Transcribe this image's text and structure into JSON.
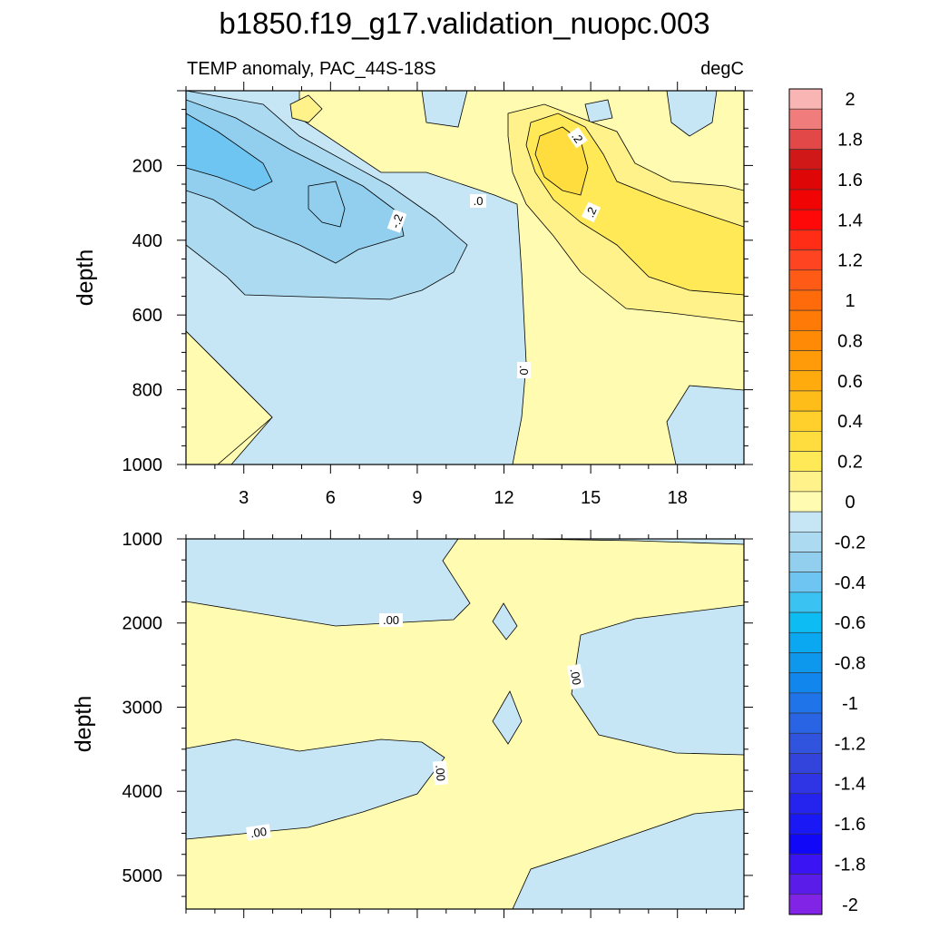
{
  "figure": {
    "title": "b1850.f19_g17.validation_nuopc.003",
    "subtitle_left": "TEMP anomaly, PAC_44S-18S",
    "subtitle_right": "degC"
  },
  "chart_data": [
    {
      "type": "contour",
      "panel": "upper",
      "ylabel": "depth",
      "xlabel": "",
      "x_range": [
        1,
        20.3
      ],
      "y_range": [
        0,
        1000
      ],
      "y_reversed": true,
      "x_ticks": [
        "3",
        "6",
        "9",
        "12",
        "15",
        "18"
      ],
      "y_ticks": [
        "200",
        "400",
        "600",
        "800",
        "1000"
      ],
      "contour_labels": [
        {
          "text": "-.2",
          "x": 8.8,
          "y": 365
        },
        {
          "text": ".0",
          "x": 11.5,
          "y": 300
        },
        {
          "text": ".2",
          "x": 14.8,
          "y": 120
        },
        {
          "text": ".2",
          "x": 15.3,
          "y": 330
        },
        {
          "text": ".0",
          "x": 12.1,
          "y": 730
        }
      ],
      "regions": [
        {
          "level": "0 to 0.1",
          "description": "warm anomaly east of x≈12 from surface to 1000 m"
        },
        {
          "level": "0.2 to 0.3",
          "description": "core warm anomaly near x≈14-15 at 100-300 m"
        },
        {
          "level": "-0.1 to -0.4",
          "description": "cool anomaly west of x≈11 in upper 600 m, coldest near x≈2-3 at 150-200 m"
        },
        {
          "level": "0 to 0.1",
          "description": "small warm patch near x≈1-4 at 650-1000 m"
        }
      ]
    },
    {
      "type": "contour",
      "panel": "lower",
      "ylabel": "depth",
      "xlabel": "",
      "x_range": [
        1,
        20.3
      ],
      "y_range": [
        1000,
        5400
      ],
      "y_reversed": true,
      "x_ticks": [],
      "y_ticks": [
        "1000",
        "2000",
        "3000",
        "4000",
        "5000"
      ],
      "contour_labels": [
        {
          "text": ".00",
          "x": 8.0,
          "y": 1950
        },
        {
          "text": ".00",
          "x": 14.9,
          "y": 2650
        },
        {
          "text": ".00",
          "x": 9.8,
          "y": 3780
        },
        {
          "text": ".00",
          "x": 3.5,
          "y": 4480
        }
      ]
    }
  ],
  "colorbar": {
    "levels": [
      {
        "label": "2",
        "color": "#f9b4b4"
      },
      {
        "label": "",
        "color": "#f07c7c"
      },
      {
        "label": "1.8",
        "color": "#e34848"
      },
      {
        "label": "",
        "color": "#d01818"
      },
      {
        "label": "1.6",
        "color": "#de0606"
      },
      {
        "label": "",
        "color": "#f00404"
      },
      {
        "label": "1.4",
        "color": "#ff0808"
      },
      {
        "label": "",
        "color": "#ff2d16"
      },
      {
        "label": "1.2",
        "color": "#ff4422"
      },
      {
        "label": "",
        "color": "#ff5a16"
      },
      {
        "label": "1",
        "color": "#ff6a0a"
      },
      {
        "label": "",
        "color": "#ff7a06"
      },
      {
        "label": "0.8",
        "color": "#ff8a06"
      },
      {
        "label": "",
        "color": "#ff9a08"
      },
      {
        "label": "0.6",
        "color": "#ffab0d"
      },
      {
        "label": "",
        "color": "#ffbd1a"
      },
      {
        "label": "0.4",
        "color": "#ffcf2c"
      },
      {
        "label": "",
        "color": "#ffdd3e"
      },
      {
        "label": "0.2",
        "color": "#ffe957"
      },
      {
        "label": "",
        "color": "#fff28a"
      },
      {
        "label": "0",
        "color": "#fffbb0"
      },
      {
        "label": "",
        "color": "#c6e5f5"
      },
      {
        "label": "-0.2",
        "color": "#acdaf0"
      },
      {
        "label": "",
        "color": "#92cfee"
      },
      {
        "label": "-0.4",
        "color": "#6fc5f1"
      },
      {
        "label": "",
        "color": "#3ac3f2"
      },
      {
        "label": "-0.6",
        "color": "#0cbcf2"
      },
      {
        "label": "",
        "color": "#0aa8f0"
      },
      {
        "label": "-0.8",
        "color": "#0d98ee"
      },
      {
        "label": "",
        "color": "#1186ed"
      },
      {
        "label": "-1",
        "color": "#1f74ea"
      },
      {
        "label": "",
        "color": "#2864e4"
      },
      {
        "label": "-1.2",
        "color": "#3054de"
      },
      {
        "label": "",
        "color": "#3344dc"
      },
      {
        "label": "-1.4",
        "color": "#2f34e4"
      },
      {
        "label": "",
        "color": "#2424ee"
      },
      {
        "label": "-1.6",
        "color": "#1a18f5"
      },
      {
        "label": "",
        "color": "#1208f8"
      },
      {
        "label": "-1.8",
        "color": "#3a14f2"
      },
      {
        "label": "",
        "color": "#5a1ce8"
      },
      {
        "label": "-2",
        "color": "#8224e6"
      }
    ]
  }
}
